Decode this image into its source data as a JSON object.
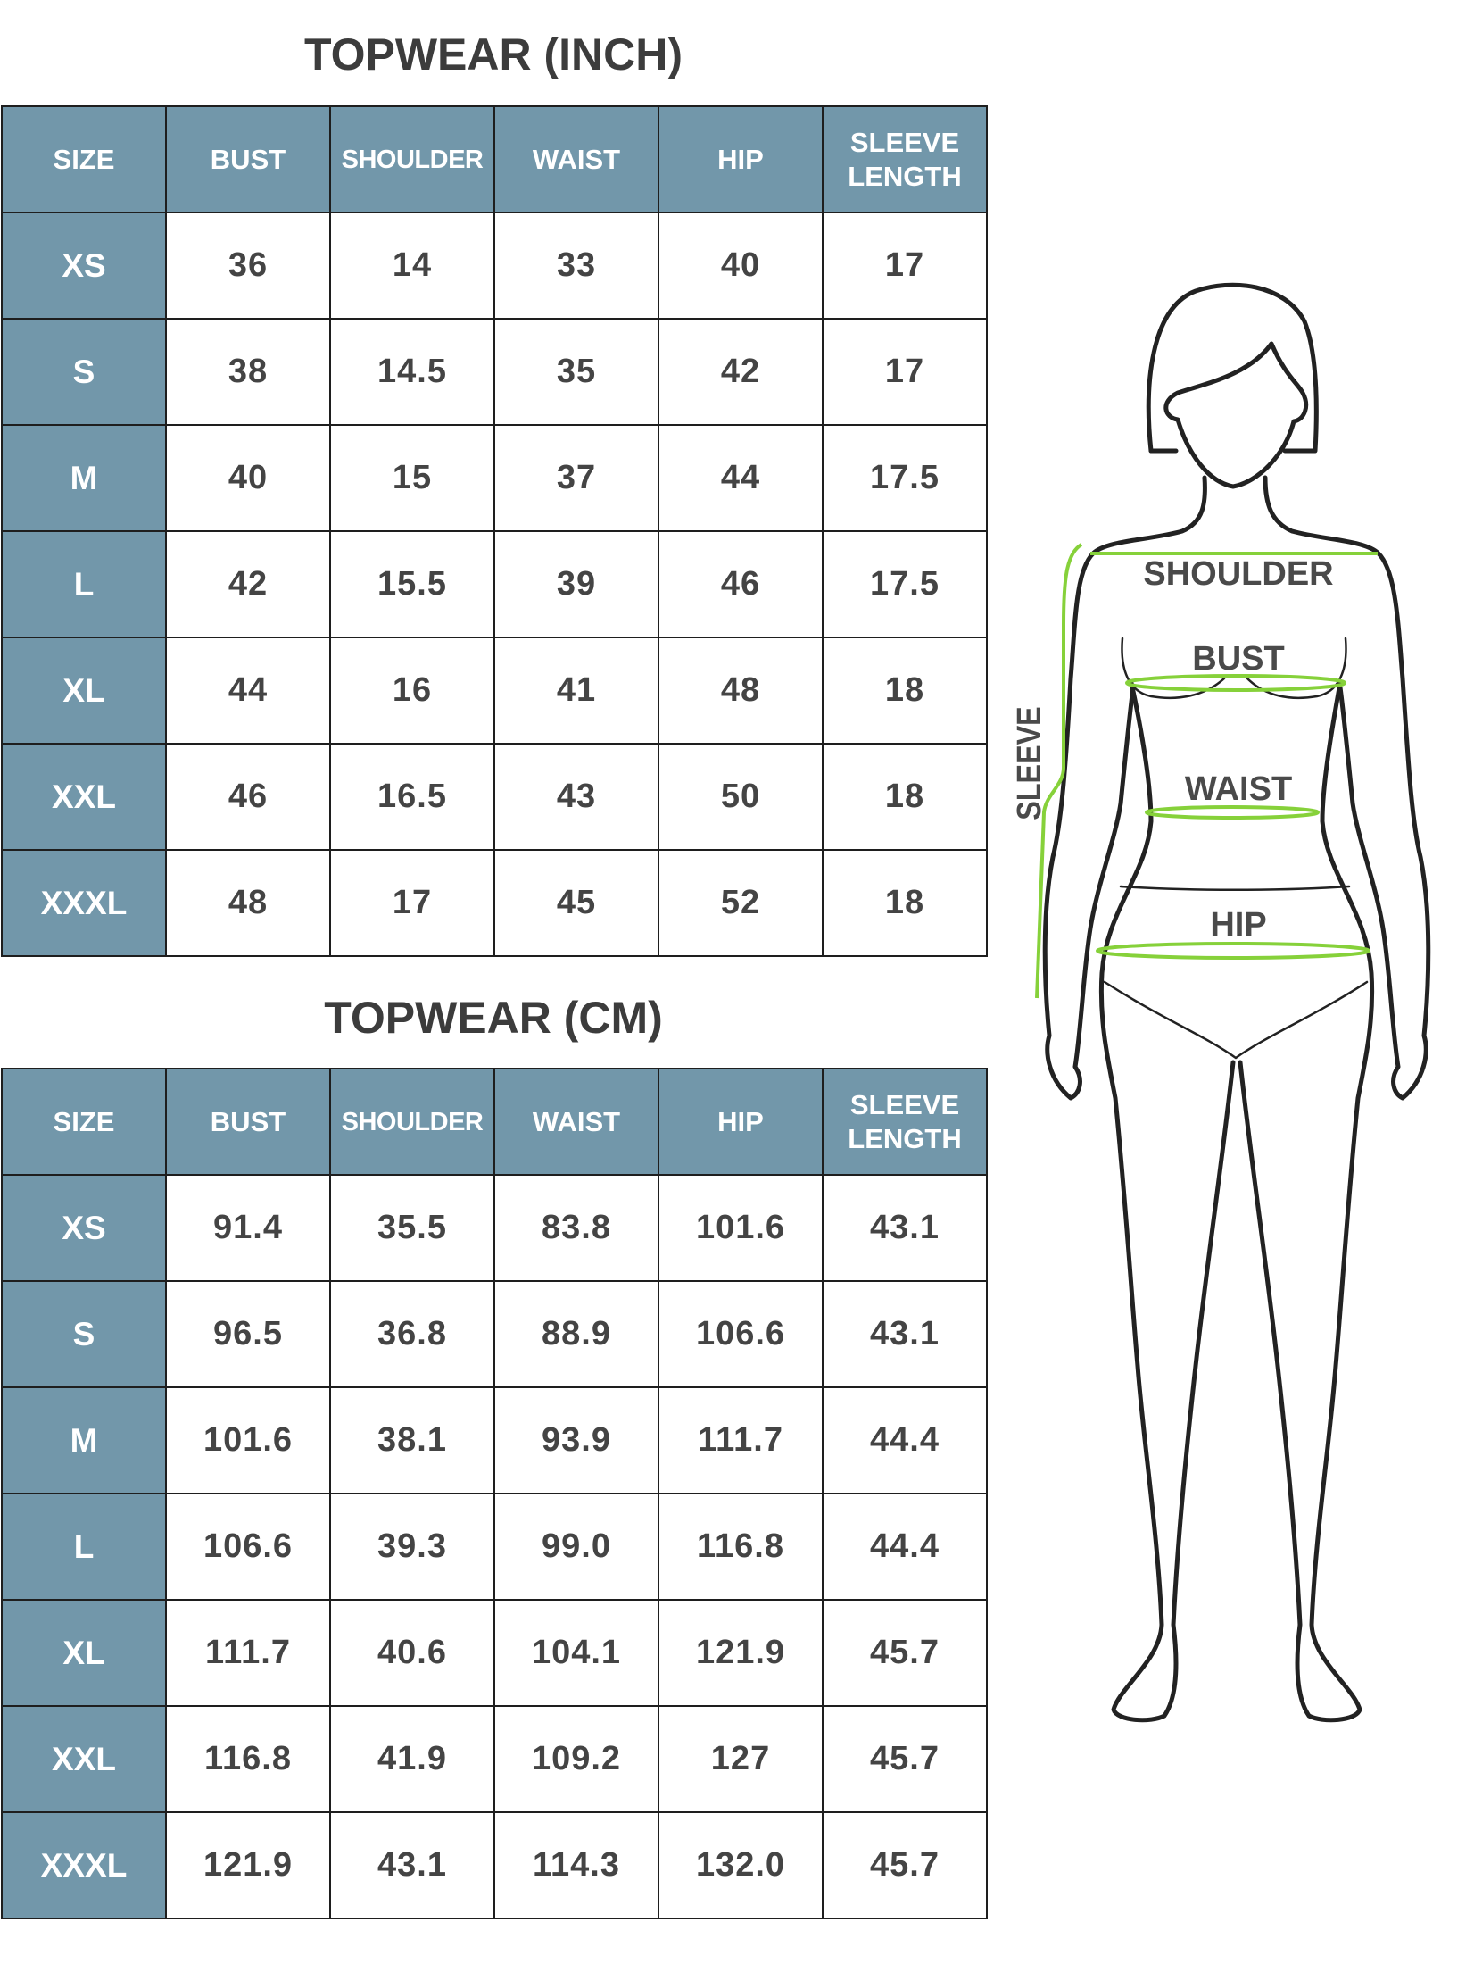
{
  "colors": {
    "header_bg": "#7297aa",
    "measure_line": "#86d13a",
    "text": "#444444"
  },
  "columns": [
    "SIZE",
    "BUST",
    "SHOULDER",
    "WAIST",
    "HIP",
    "SLEEVE LENGTH"
  ],
  "tables": [
    {
      "title": "TOPWEAR (INCH)",
      "rows": [
        [
          "XS",
          "36",
          "14",
          "33",
          "40",
          "17"
        ],
        [
          "S",
          "38",
          "14.5",
          "35",
          "42",
          "17"
        ],
        [
          "M",
          "40",
          "15",
          "37",
          "44",
          "17.5"
        ],
        [
          "L",
          "42",
          "15.5",
          "39",
          "46",
          "17.5"
        ],
        [
          "XL",
          "44",
          "16",
          "41",
          "48",
          "18"
        ],
        [
          "XXL",
          "46",
          "16.5",
          "43",
          "50",
          "18"
        ],
        [
          "XXXL",
          "48",
          "17",
          "45",
          "52",
          "18"
        ]
      ]
    },
    {
      "title": "TOPWEAR (CM)",
      "rows": [
        [
          "XS",
          "91.4",
          "35.5",
          "83.8",
          "101.6",
          "43.1"
        ],
        [
          "S",
          "96.5",
          "36.8",
          "88.9",
          "106.6",
          "43.1"
        ],
        [
          "M",
          "101.6",
          "38.1",
          "93.9",
          "111.7",
          "44.4"
        ],
        [
          "L",
          "106.6",
          "39.3",
          "99.0",
          "116.8",
          "44.4"
        ],
        [
          "XL",
          "111.7",
          "40.6",
          "104.1",
          "121.9",
          "45.7"
        ],
        [
          "XXL",
          "116.8",
          "41.9",
          "109.2",
          "127",
          "45.7"
        ],
        [
          "XXXL",
          "121.9",
          "43.1",
          "114.3",
          "132.0",
          "45.7"
        ]
      ]
    }
  ],
  "figure": {
    "labels": {
      "shoulder": "SHOULDER",
      "bust": "BUST",
      "waist": "WAIST",
      "hip": "HIP",
      "sleeve": "SLEEVE"
    }
  }
}
